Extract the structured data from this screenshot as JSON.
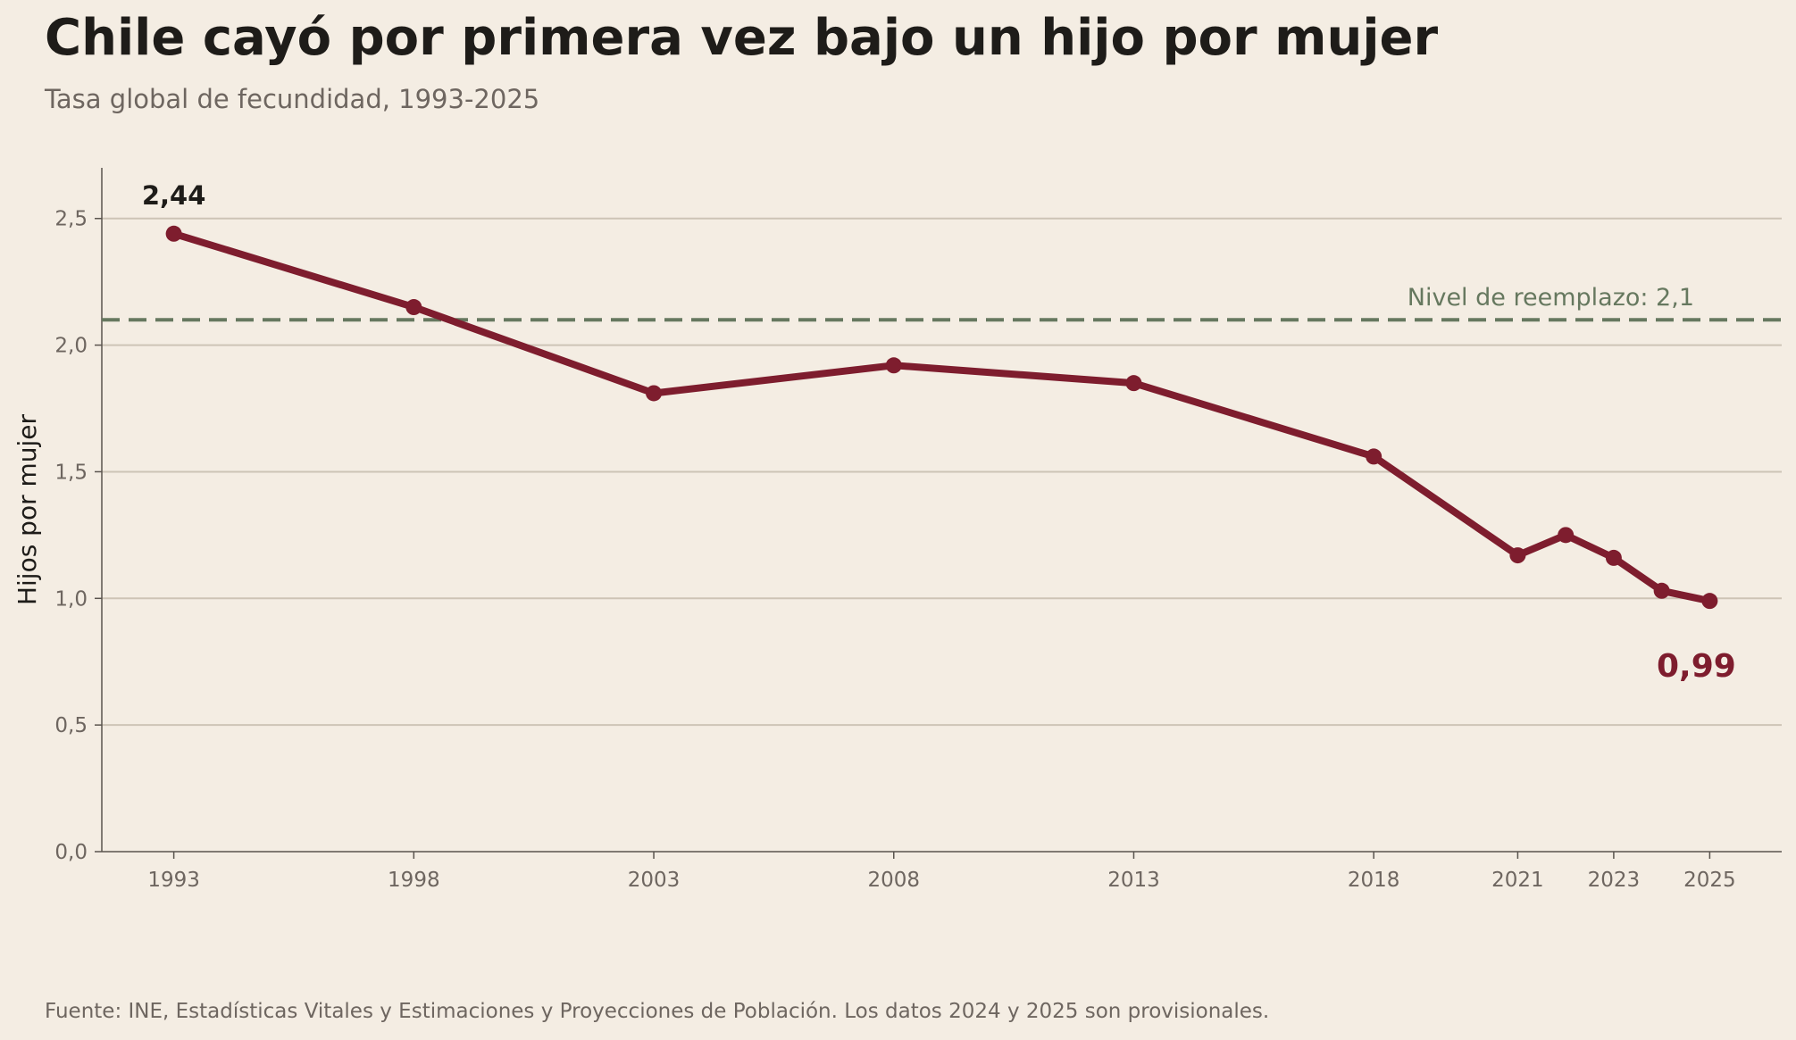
{
  "header": {
    "title": "Chile cayó por primera vez bajo un hijo por mujer",
    "subtitle": "Tasa global de fecundidad, 1993-2025"
  },
  "footer": {
    "source": "Fuente: INE, Estadísticas Vitales y Estimaciones y Proyecciones de Población. Los datos 2024 y 2025 son provisionales."
  },
  "chart_data": {
    "type": "line",
    "title": "Chile cayó por primera vez bajo un hijo por mujer",
    "subtitle": "Tasa global de fecundidad, 1993-2025",
    "xlabel": "",
    "ylabel": "Hijos por mujer",
    "x": [
      1993,
      1998,
      2003,
      2008,
      2013,
      2018,
      2021,
      2022,
      2023,
      2024,
      2025
    ],
    "values": [
      2.44,
      2.15,
      1.81,
      1.92,
      1.85,
      1.56,
      1.17,
      1.25,
      1.16,
      1.03,
      0.99
    ],
    "xlim": [
      1991.5,
      2026.5
    ],
    "ylim": [
      0,
      2.7
    ],
    "x_ticks": [
      1993,
      1998,
      2003,
      2008,
      2013,
      2018,
      2021,
      2023,
      2025
    ],
    "x_tick_labels": [
      "1993",
      "1998",
      "2003",
      "2008",
      "2013",
      "2018",
      "2021",
      "2023",
      "2025"
    ],
    "y_ticks": [
      0,
      0.5,
      1,
      1.5,
      2,
      2.5
    ],
    "y_tick_labels": [
      "0,0",
      "0,5",
      "1,0",
      "1,5",
      "2,0",
      "2,5"
    ],
    "reference_line": {
      "value": 2.1,
      "label": "Nivel de reemplazo: 2,1",
      "style": "dashed"
    },
    "annotations": [
      {
        "x": 1993,
        "y": 2.44,
        "text": "2,44"
      },
      {
        "x": 2025,
        "y": 0.99,
        "text": "0,99"
      }
    ],
    "grid": "horizontal",
    "colors": {
      "line": "#7e1d2e",
      "reference": "#66785f",
      "grid": "#cdc4b6",
      "axis": "#5a544e",
      "background": "#f4ede3"
    }
  }
}
